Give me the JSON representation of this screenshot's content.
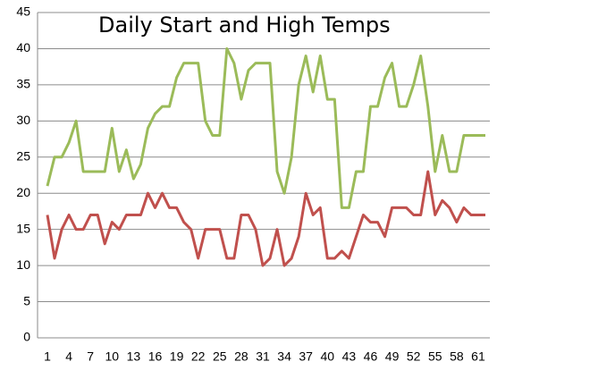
{
  "chart_data": {
    "type": "line",
    "title": "Daily Start and High Temps",
    "categories": [
      1,
      null,
      null,
      4,
      null,
      null,
      7,
      null,
      null,
      10,
      null,
      null,
      13,
      null,
      null,
      16,
      null,
      null,
      19,
      null,
      null,
      22,
      null,
      null,
      25,
      null,
      null,
      28,
      null,
      null,
      31,
      null,
      null,
      34,
      null,
      null,
      37,
      null,
      null,
      40,
      null,
      null,
      43,
      null,
      null,
      46,
      null,
      null,
      49,
      null,
      null,
      52,
      null,
      null,
      55,
      null,
      null,
      58,
      null,
      null,
      61,
      null
    ],
    "series": [
      {
        "color": "#9bbb59",
        "values": [
          21,
          25,
          25,
          27,
          30,
          23,
          23,
          23,
          23,
          29,
          23,
          26,
          22,
          24,
          29,
          31,
          32,
          32,
          36,
          38,
          38,
          38,
          30,
          28,
          28,
          40,
          38,
          33,
          37,
          38,
          38,
          38,
          23,
          20,
          25,
          35,
          39,
          34,
          39,
          33,
          33,
          18,
          18,
          23,
          23,
          32,
          32,
          36,
          38,
          32,
          32,
          35,
          39,
          32,
          23,
          28,
          23,
          23,
          28,
          28,
          28,
          28
        ]
      },
      {
        "color": "#c0504d",
        "values": [
          17,
          11,
          15,
          17,
          15,
          15,
          17,
          17,
          13,
          16,
          15,
          17,
          17,
          17,
          20,
          18,
          20,
          18,
          18,
          16,
          15,
          11,
          15,
          15,
          15,
          11,
          11,
          17,
          17,
          15,
          10,
          11,
          15,
          10,
          11,
          14,
          20,
          17,
          18,
          11,
          11,
          12,
          11,
          14,
          17,
          16,
          16,
          14,
          18,
          18,
          18,
          17,
          17,
          23,
          17,
          19,
          18,
          16,
          18,
          17,
          17,
          17
        ]
      }
    ],
    "ylim": [
      0,
      45
    ],
    "yticks": [
      0,
      5,
      10,
      15,
      20,
      25,
      30,
      35,
      40,
      45
    ],
    "grid": true
  }
}
